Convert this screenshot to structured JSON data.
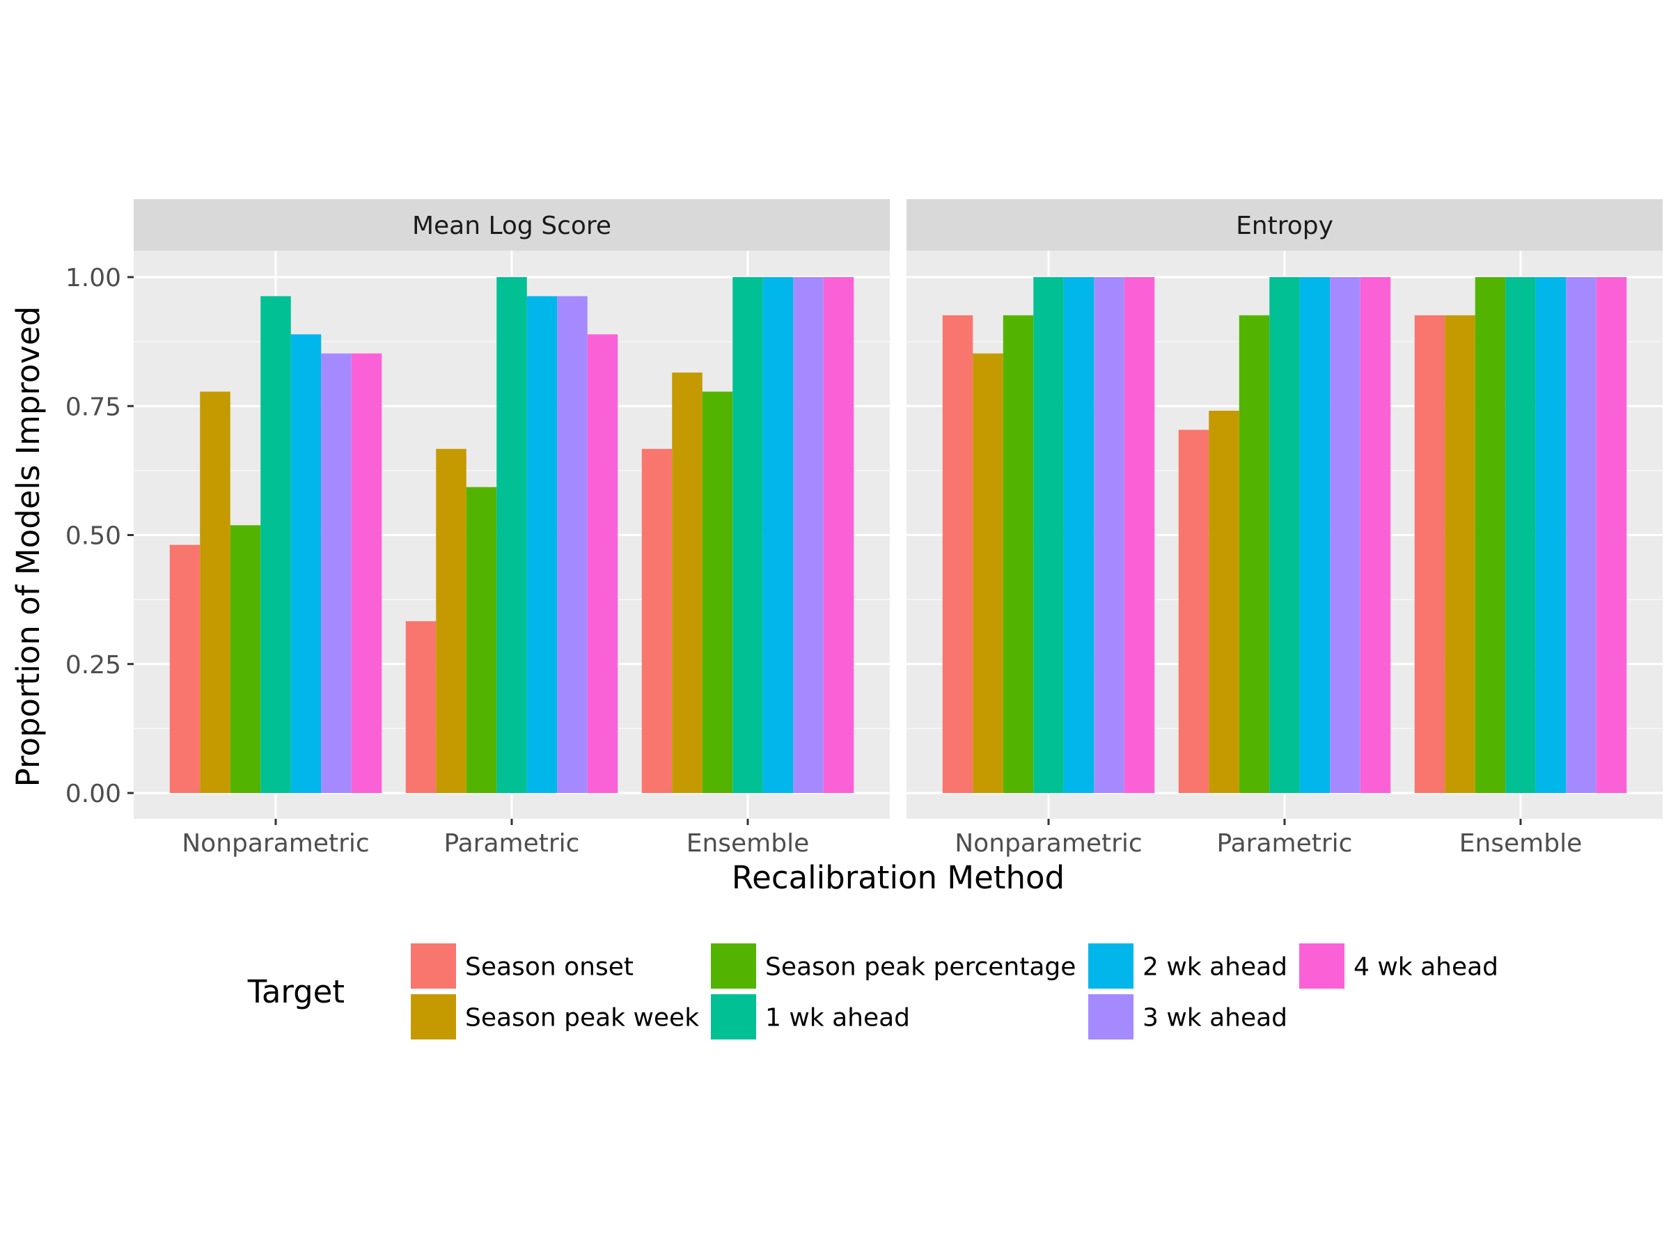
{
  "chart_data": {
    "type": "bar",
    "xlabel": "Recalibration Method",
    "ylabel": "Proportion of Models Improved",
    "ylim": [
      0,
      1.08
    ],
    "yticks": [
      "0.00",
      "0.25",
      "0.50",
      "0.75",
      "1.00"
    ],
    "ytick_values": [
      0,
      0.25,
      0.5,
      0.75,
      1.0
    ],
    "grid": true,
    "legend_position": "bottom",
    "legend_title": "Target",
    "categories": [
      "Nonparametric",
      "Parametric",
      "Ensemble"
    ],
    "series_names": [
      "Season onset",
      "Season peak week",
      "Season peak percentage",
      "1 wk ahead",
      "2 wk ahead",
      "3 wk ahead",
      "4 wk ahead"
    ],
    "colors": [
      "#F8766D",
      "#C49A00",
      "#53B400",
      "#00C094",
      "#00B6EB",
      "#A58AFF",
      "#FB61D7"
    ],
    "facets": [
      {
        "title": "Mean Log Score",
        "values": [
          [
            0.481,
            0.778,
            0.519,
            0.963,
            0.889,
            0.852,
            0.852
          ],
          [
            0.333,
            0.667,
            0.593,
            1.0,
            0.963,
            0.963,
            0.889
          ],
          [
            0.667,
            0.815,
            0.778,
            1.0,
            1.0,
            1.0,
            1.0
          ]
        ]
      },
      {
        "title": "Entropy",
        "values": [
          [
            0.926,
            0.852,
            0.926,
            1.0,
            1.0,
            1.0,
            1.0
          ],
          [
            0.704,
            0.741,
            0.926,
            1.0,
            1.0,
            1.0,
            1.0
          ],
          [
            0.926,
            0.926,
            1.0,
            1.0,
            1.0,
            1.0,
            1.0
          ]
        ]
      }
    ]
  }
}
